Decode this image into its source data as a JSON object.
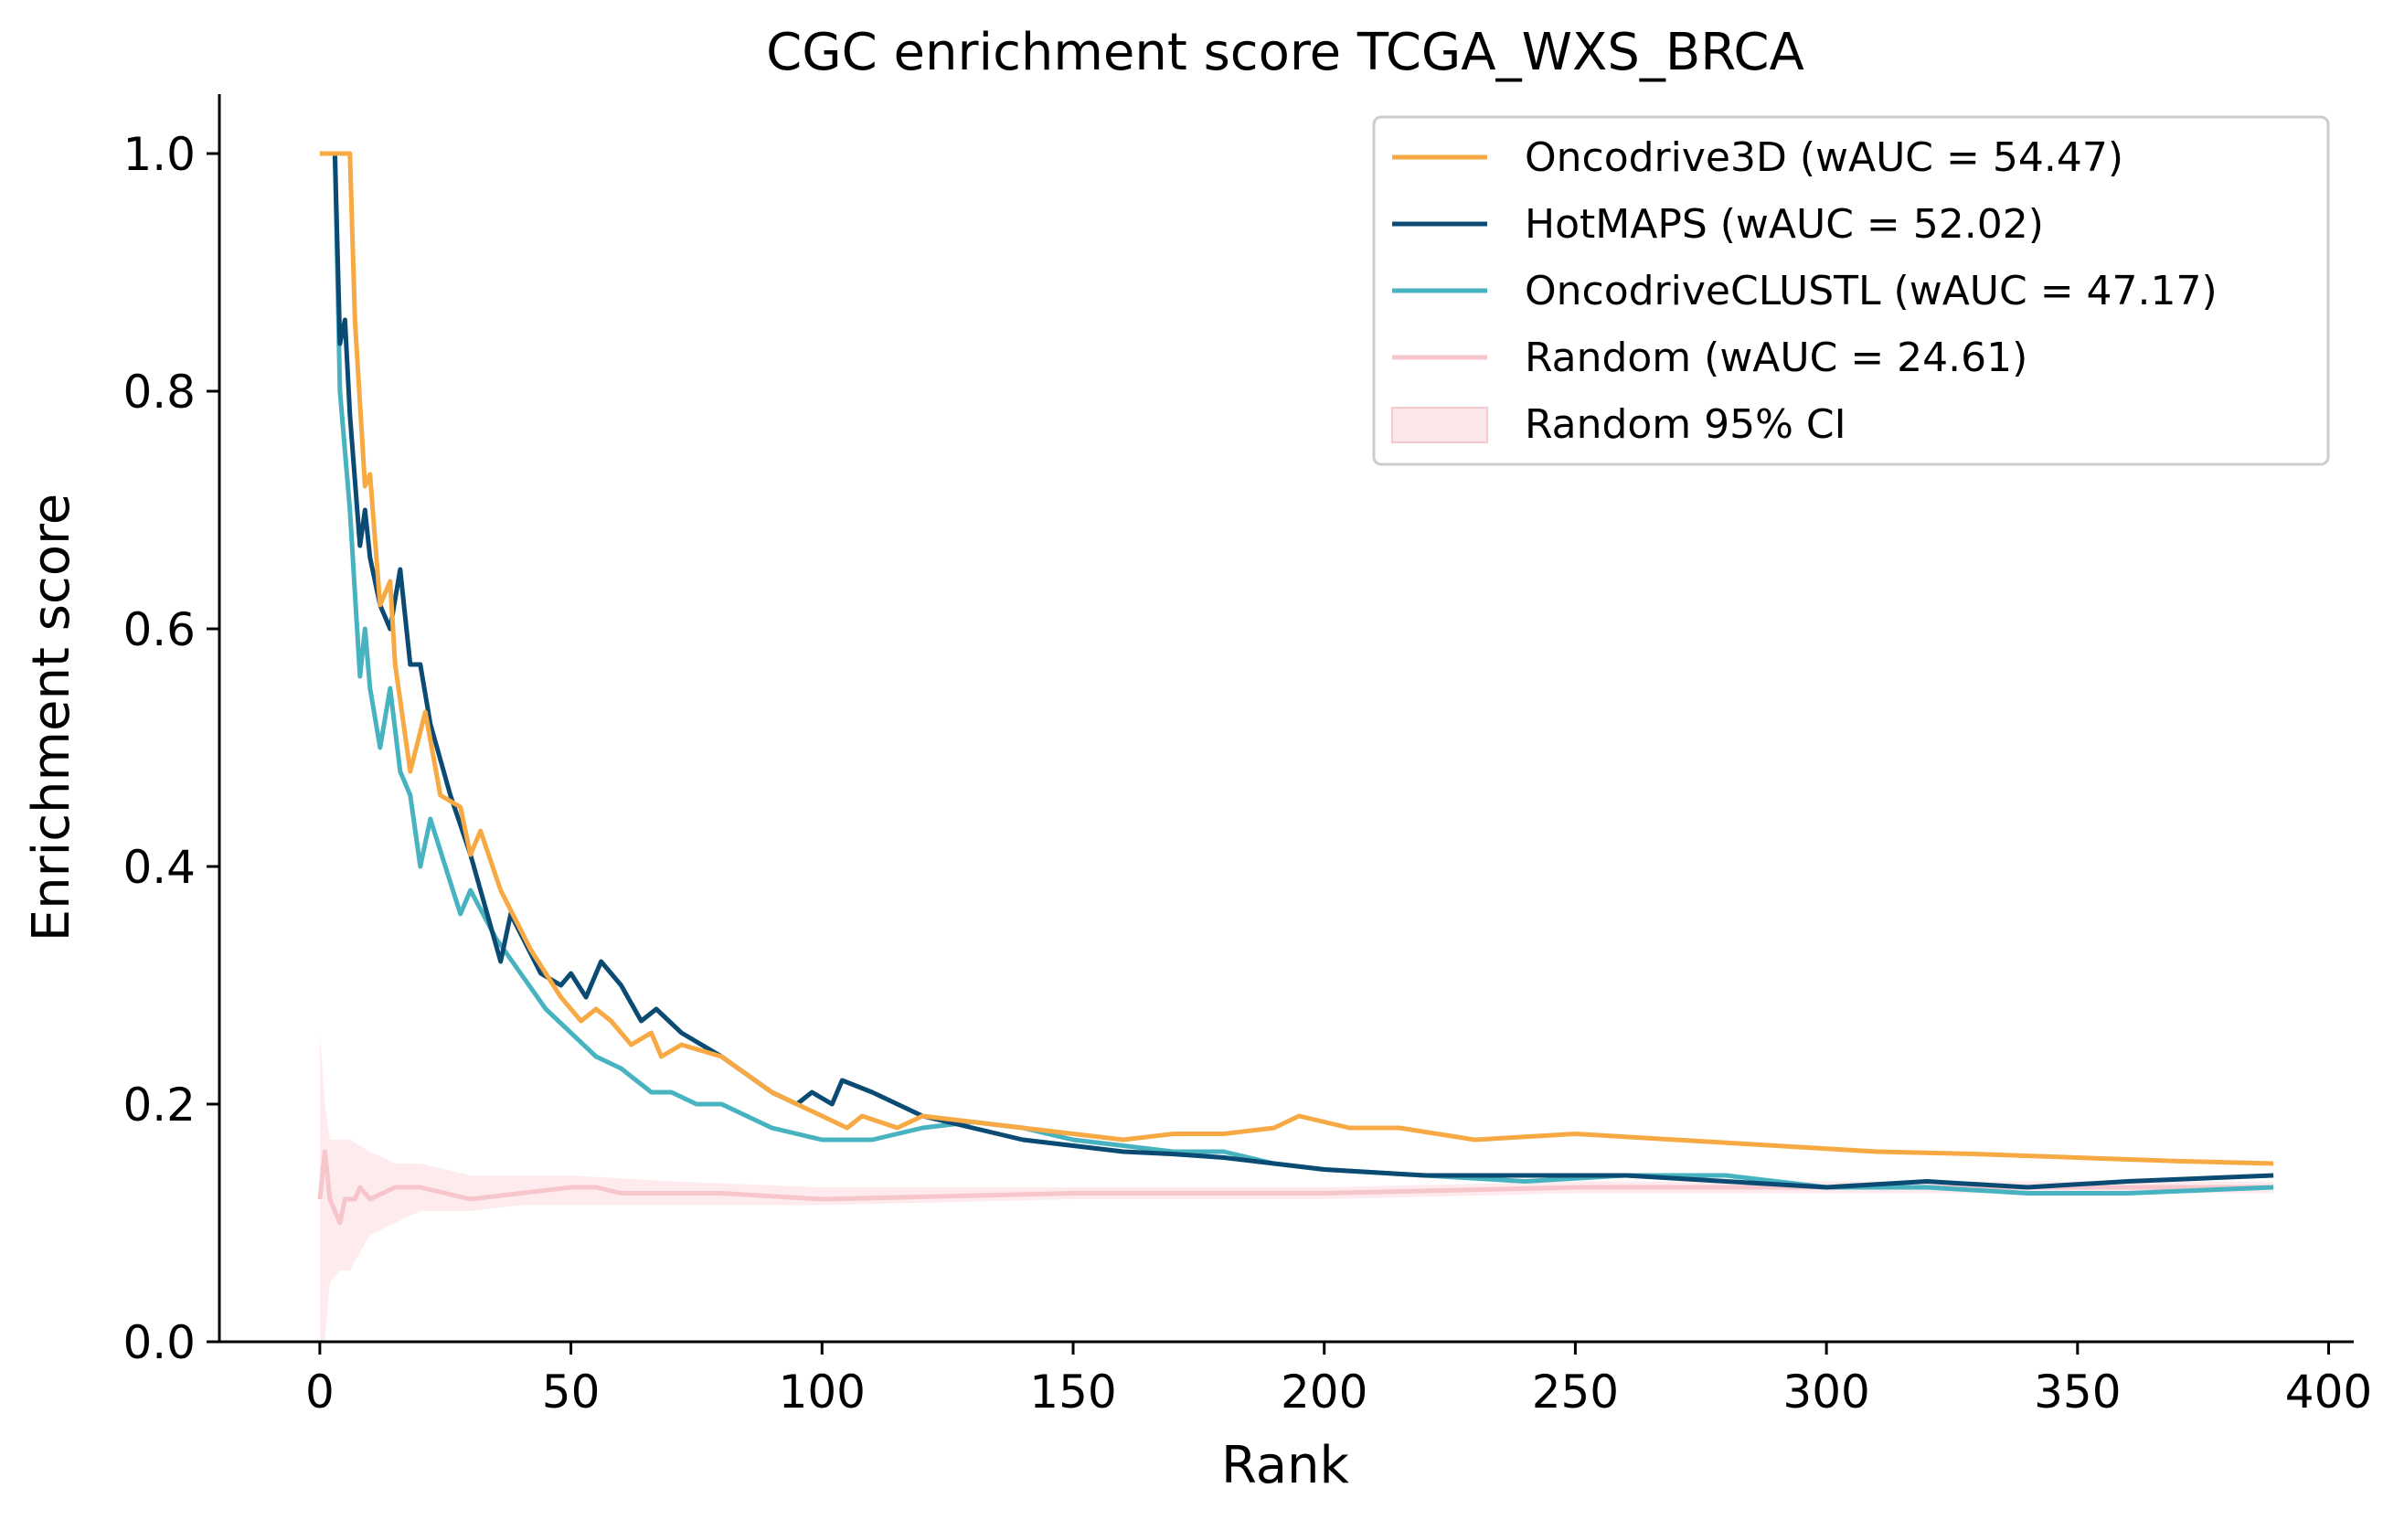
{
  "chart_data": {
    "type": "line",
    "title": "CGC enrichment score TCGA_WXS_BRCA",
    "xlabel": "Rank",
    "ylabel": "Enrichment score",
    "xlim": [
      -20,
      405
    ],
    "ylim": [
      0,
      1.05
    ],
    "xticks": [
      0,
      50,
      100,
      150,
      200,
      250,
      300,
      350,
      400
    ],
    "yticks": [
      0.0,
      0.2,
      0.4,
      0.6,
      0.8,
      1.0
    ],
    "xtick_labels": [
      "0",
      "50",
      "100",
      "150",
      "200",
      "250",
      "300",
      "350",
      "400"
    ],
    "ytick_labels": [
      "0.0",
      "0.2",
      "0.4",
      "0.6",
      "0.8",
      "1.0"
    ],
    "grid": false,
    "legend_position": "top-right",
    "series": [
      {
        "name": "Oncodrive3D (wAUC = 54.47)",
        "color": "#f7a944",
        "points": [
          [
            0,
            1.0
          ],
          [
            6,
            1.0
          ],
          [
            7,
            0.86
          ],
          [
            9,
            0.72
          ],
          [
            10,
            0.73
          ],
          [
            12,
            0.62
          ],
          [
            14,
            0.64
          ],
          [
            15,
            0.57
          ],
          [
            18,
            0.48
          ],
          [
            21,
            0.53
          ],
          [
            24,
            0.46
          ],
          [
            28,
            0.45
          ],
          [
            30,
            0.41
          ],
          [
            32,
            0.43
          ],
          [
            36,
            0.38
          ],
          [
            42,
            0.33
          ],
          [
            48,
            0.29
          ],
          [
            52,
            0.27
          ],
          [
            55,
            0.28
          ],
          [
            58,
            0.27
          ],
          [
            62,
            0.25
          ],
          [
            66,
            0.26
          ],
          [
            68,
            0.24
          ],
          [
            72,
            0.25
          ],
          [
            80,
            0.24
          ],
          [
            90,
            0.21
          ],
          [
            100,
            0.19
          ],
          [
            105,
            0.18
          ],
          [
            108,
            0.19
          ],
          [
            115,
            0.18
          ],
          [
            120,
            0.19
          ],
          [
            130,
            0.185
          ],
          [
            140,
            0.18
          ],
          [
            150,
            0.175
          ],
          [
            160,
            0.17
          ],
          [
            170,
            0.175
          ],
          [
            180,
            0.175
          ],
          [
            190,
            0.18
          ],
          [
            195,
            0.19
          ],
          [
            205,
            0.18
          ],
          [
            215,
            0.18
          ],
          [
            230,
            0.17
          ],
          [
            250,
            0.175
          ],
          [
            270,
            0.17
          ],
          [
            290,
            0.165
          ],
          [
            310,
            0.16
          ],
          [
            330,
            0.158
          ],
          [
            350,
            0.155
          ],
          [
            370,
            0.152
          ],
          [
            389,
            0.15
          ]
        ]
      },
      {
        "name": "HotMAPS (wAUC = 52.02)",
        "color": "#0a4a73",
        "points": [
          [
            3,
            1.0
          ],
          [
            4,
            0.84
          ],
          [
            5,
            0.86
          ],
          [
            6,
            0.78
          ],
          [
            8,
            0.67
          ],
          [
            9,
            0.7
          ],
          [
            10,
            0.66
          ],
          [
            12,
            0.62
          ],
          [
            14,
            0.6
          ],
          [
            16,
            0.65
          ],
          [
            18,
            0.57
          ],
          [
            20,
            0.57
          ],
          [
            22,
            0.52
          ],
          [
            26,
            0.46
          ],
          [
            30,
            0.41
          ],
          [
            36,
            0.32
          ],
          [
            38,
            0.36
          ],
          [
            44,
            0.31
          ],
          [
            48,
            0.3
          ],
          [
            50,
            0.31
          ],
          [
            53,
            0.29
          ],
          [
            56,
            0.32
          ],
          [
            60,
            0.3
          ],
          [
            64,
            0.27
          ],
          [
            67,
            0.28
          ],
          [
            72,
            0.26
          ],
          [
            80,
            0.24
          ],
          [
            90,
            0.21
          ],
          [
            95,
            0.2
          ],
          [
            98,
            0.21
          ],
          [
            102,
            0.2
          ],
          [
            104,
            0.22
          ],
          [
            110,
            0.21
          ],
          [
            120,
            0.19
          ],
          [
            130,
            0.18
          ],
          [
            140,
            0.17
          ],
          [
            150,
            0.165
          ],
          [
            160,
            0.16
          ],
          [
            170,
            0.158
          ],
          [
            180,
            0.155
          ],
          [
            190,
            0.15
          ],
          [
            200,
            0.145
          ],
          [
            220,
            0.14
          ],
          [
            240,
            0.14
          ],
          [
            260,
            0.14
          ],
          [
            280,
            0.135
          ],
          [
            300,
            0.13
          ],
          [
            320,
            0.135
          ],
          [
            340,
            0.13
          ],
          [
            360,
            0.135
          ],
          [
            389,
            0.14
          ]
        ]
      },
      {
        "name": "OncodriveCLUSTL (wAUC = 47.17)",
        "color": "#48b3c0",
        "points": [
          [
            3,
            1.0
          ],
          [
            4,
            0.8
          ],
          [
            6,
            0.7
          ],
          [
            8,
            0.56
          ],
          [
            9,
            0.6
          ],
          [
            10,
            0.55
          ],
          [
            12,
            0.5
          ],
          [
            14,
            0.55
          ],
          [
            16,
            0.48
          ],
          [
            18,
            0.46
          ],
          [
            20,
            0.4
          ],
          [
            22,
            0.44
          ],
          [
            25,
            0.4
          ],
          [
            28,
            0.36
          ],
          [
            30,
            0.38
          ],
          [
            35,
            0.34
          ],
          [
            40,
            0.31
          ],
          [
            45,
            0.28
          ],
          [
            50,
            0.26
          ],
          [
            55,
            0.24
          ],
          [
            60,
            0.23
          ],
          [
            66,
            0.21
          ],
          [
            70,
            0.21
          ],
          [
            75,
            0.2
          ],
          [
            80,
            0.2
          ],
          [
            90,
            0.18
          ],
          [
            100,
            0.17
          ],
          [
            110,
            0.17
          ],
          [
            120,
            0.18
          ],
          [
            130,
            0.185
          ],
          [
            140,
            0.18
          ],
          [
            150,
            0.17
          ],
          [
            160,
            0.165
          ],
          [
            170,
            0.16
          ],
          [
            180,
            0.16
          ],
          [
            190,
            0.15
          ],
          [
            200,
            0.145
          ],
          [
            220,
            0.14
          ],
          [
            240,
            0.135
          ],
          [
            260,
            0.14
          ],
          [
            280,
            0.14
          ],
          [
            300,
            0.13
          ],
          [
            320,
            0.13
          ],
          [
            340,
            0.125
          ],
          [
            360,
            0.125
          ],
          [
            389,
            0.13
          ]
        ]
      },
      {
        "name": "Random (wAUC = 24.61)",
        "color": "#f7c5cc",
        "points": [
          [
            0,
            0.12
          ],
          [
            1,
            0.16
          ],
          [
            2,
            0.12
          ],
          [
            3,
            0.11
          ],
          [
            4,
            0.1
          ],
          [
            5,
            0.12
          ],
          [
            7,
            0.12
          ],
          [
            8,
            0.13
          ],
          [
            10,
            0.12
          ],
          [
            15,
            0.13
          ],
          [
            20,
            0.13
          ],
          [
            25,
            0.125
          ],
          [
            30,
            0.12
          ],
          [
            40,
            0.125
          ],
          [
            50,
            0.13
          ],
          [
            55,
            0.13
          ],
          [
            60,
            0.125
          ],
          [
            70,
            0.125
          ],
          [
            80,
            0.125
          ],
          [
            100,
            0.12
          ],
          [
            150,
            0.125
          ],
          [
            200,
            0.125
          ],
          [
            250,
            0.13
          ],
          [
            300,
            0.13
          ],
          [
            350,
            0.13
          ],
          [
            389,
            0.13
          ]
        ]
      }
    ],
    "bands": [
      {
        "name": "Random 95% CI",
        "color": "#fbdde2",
        "x": [
          0,
          1,
          2,
          4,
          6,
          10,
          15,
          20,
          30,
          40,
          50,
          70,
          100,
          150,
          200,
          250,
          300,
          350,
          389
        ],
        "lower": [
          0.0,
          0.0,
          0.05,
          0.06,
          0.06,
          0.09,
          0.1,
          0.11,
          0.11,
          0.115,
          0.115,
          0.115,
          0.115,
          0.12,
          0.12,
          0.125,
          0.125,
          0.125,
          0.125
        ],
        "upper": [
          0.26,
          0.2,
          0.17,
          0.17,
          0.17,
          0.16,
          0.15,
          0.15,
          0.14,
          0.14,
          0.14,
          0.135,
          0.13,
          0.13,
          0.13,
          0.135,
          0.135,
          0.135,
          0.135
        ]
      }
    ]
  }
}
